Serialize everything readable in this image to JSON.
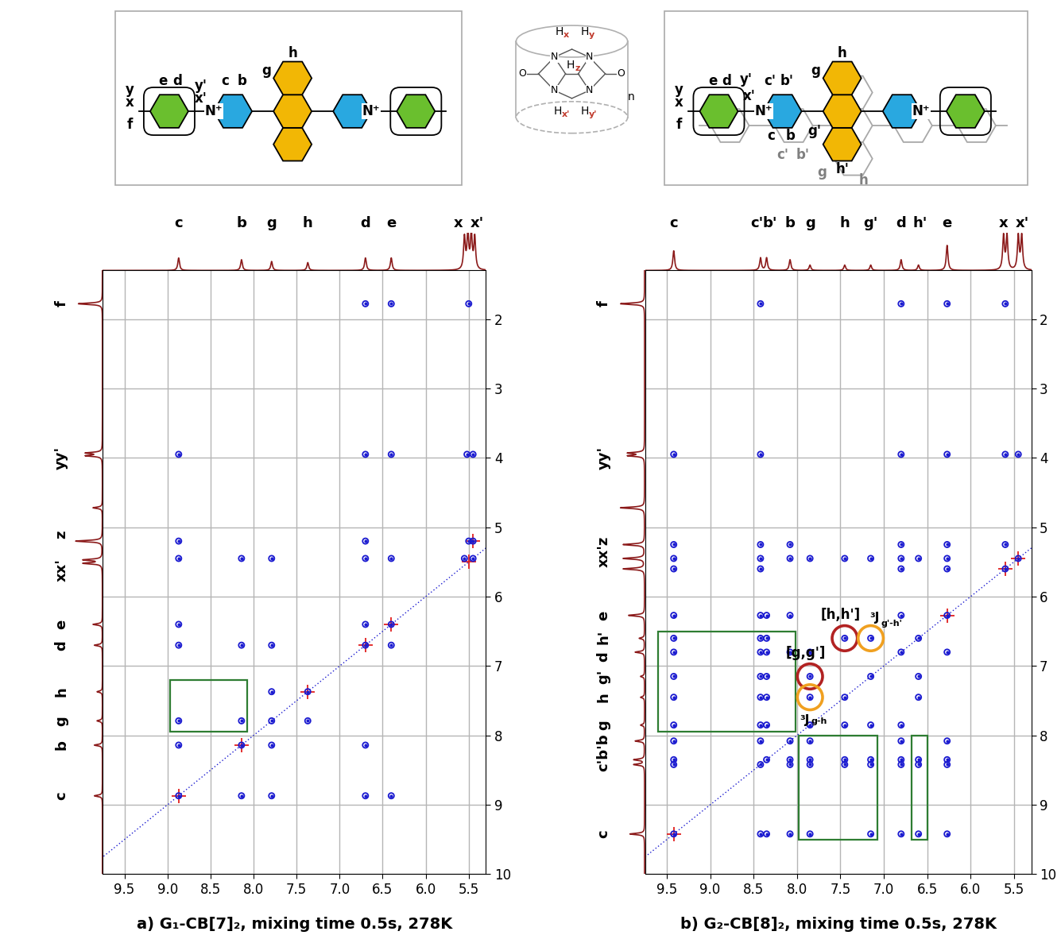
{
  "structures": {
    "G1": {
      "labels": [
        "y",
        "x",
        "f",
        "e",
        "d",
        "y'",
        "x'",
        "c",
        "b",
        "h",
        "g",
        "N⁺",
        "N⁺"
      ]
    },
    "CB": {
      "h_labels": [
        {
          "text": "H",
          "sub": "x"
        },
        {
          "text": "H",
          "sub": "y"
        },
        {
          "text": "H",
          "sub": "z"
        },
        {
          "text": "H",
          "sub": "x'"
        },
        {
          "text": "H",
          "sub": "y'"
        }
      ],
      "atoms": [
        "N",
        "N",
        "N",
        "N",
        "O",
        "O"
      ],
      "repeat": "n"
    },
    "G2": {
      "labels": [
        {
          "text": "y",
          "color": "black"
        },
        {
          "text": "x",
          "color": "black"
        },
        {
          "text": "f",
          "color": "black"
        },
        {
          "text": "e",
          "color": "black"
        },
        {
          "text": "d",
          "color": "black"
        },
        {
          "text": "y'",
          "color": "black"
        },
        {
          "text": "x'",
          "color": "black"
        },
        {
          "text": "c'",
          "color": "black"
        },
        {
          "text": "b'",
          "color": "black"
        },
        {
          "text": "N⁺",
          "color": "black"
        },
        {
          "text": "N⁺",
          "color": "black"
        },
        {
          "text": "c",
          "color": "black"
        },
        {
          "text": "b",
          "color": "black"
        },
        {
          "text": "c'",
          "color": "gray"
        },
        {
          "text": "b'",
          "color": "gray"
        },
        {
          "text": "g",
          "color": "black"
        },
        {
          "text": "h",
          "color": "black"
        },
        {
          "text": "g'",
          "color": "black"
        },
        {
          "text": "h'",
          "color": "black"
        },
        {
          "text": "g",
          "color": "gray"
        },
        {
          "text": "h",
          "color": "gray"
        }
      ]
    }
  },
  "chart_data": [
    {
      "type": "scatter",
      "title": "a) G₁-CB[7]₂, mixing time 0.5s, 278K",
      "color": "#1a1ad0",
      "xlim": [
        9.75,
        5.3
      ],
      "ylim": [
        10,
        1.3
      ],
      "xticks": [
        9.5,
        9.0,
        8.5,
        8.0,
        7.5,
        7.0,
        6.5,
        6.0,
        5.5
      ],
      "yticks": [
        2,
        3,
        4,
        5,
        6,
        7,
        8,
        9,
        10
      ],
      "grid": true,
      "cross_peaks": [
        {
          "y": 1.78,
          "x": [
            6.7,
            6.4,
            5.5
          ]
        },
        {
          "y": 3.95,
          "x": [
            8.87,
            6.7,
            6.4,
            5.52,
            5.45
          ]
        },
        {
          "y": 5.2,
          "x": [
            8.87,
            6.7,
            5.5,
            5.45
          ]
        },
        {
          "y": 5.45,
          "x": [
            8.87,
            8.14,
            7.79,
            6.7,
            6.4,
            5.55,
            5.45
          ]
        },
        {
          "y": 6.4,
          "x": [
            8.87,
            6.7,
            6.4
          ]
        },
        {
          "y": 6.7,
          "x": [
            8.87,
            8.14,
            7.79,
            6.7,
            6.4
          ]
        },
        {
          "y": 7.37,
          "x": [
            7.79,
            7.37
          ]
        },
        {
          "y": 7.79,
          "x": [
            8.87,
            8.14,
            7.79,
            7.37
          ]
        },
        {
          "y": 8.14,
          "x": [
            8.87,
            8.14,
            7.79,
            6.7
          ]
        },
        {
          "y": 8.87,
          "x": [
            8.87,
            8.14,
            7.79,
            6.7,
            6.4
          ]
        }
      ],
      "negative_peaks": [
        [
          8.87,
          8.87
        ],
        [
          8.14,
          8.14
        ],
        [
          7.37,
          7.37
        ],
        [
          6.7,
          6.7
        ],
        [
          6.4,
          6.4
        ],
        [
          5.5,
          5.5
        ],
        [
          5.45,
          5.2
        ]
      ],
      "top_trace": [
        [
          8.87,
          0.35
        ],
        [
          8.14,
          0.3
        ],
        [
          7.79,
          0.25
        ],
        [
          7.37,
          0.22
        ],
        [
          6.7,
          0.35
        ],
        [
          6.4,
          0.35
        ],
        [
          5.55,
          0.9
        ],
        [
          5.51,
          1.0
        ],
        [
          5.47,
          1.0
        ],
        [
          5.43,
          0.9
        ]
      ],
      "top_labels": [
        {
          "text": "c",
          "ppm": 8.87
        },
        {
          "text": "b",
          "ppm": 8.14
        },
        {
          "text": "g",
          "ppm": 7.79
        },
        {
          "text": "h",
          "ppm": 7.37
        },
        {
          "text": "d",
          "ppm": 6.7
        },
        {
          "text": "e",
          "ppm": 6.4
        },
        {
          "text": "x",
          "ppm": 5.62
        },
        {
          "text": "x'",
          "ppm": 5.4
        }
      ],
      "side_trace": [
        [
          1.78,
          0.9
        ],
        [
          3.93,
          0.6
        ],
        [
          3.97,
          0.6
        ],
        [
          4.72,
          0.35
        ],
        [
          5.2,
          1.0
        ],
        [
          5.47,
          0.7
        ],
        [
          5.52,
          0.7
        ],
        [
          6.4,
          0.35
        ],
        [
          6.7,
          0.3
        ],
        [
          7.37,
          0.2
        ],
        [
          7.79,
          0.2
        ],
        [
          8.14,
          0.3
        ],
        [
          8.87,
          0.3
        ]
      ],
      "side_labels": [
        {
          "text": "f",
          "ppm": 1.78
        },
        {
          "text": "yy'",
          "ppm": 4.0
        },
        {
          "text": "z",
          "ppm": 5.1
        },
        {
          "text": "xx'",
          "ppm": 5.62
        },
        {
          "text": "e",
          "ppm": 6.4
        },
        {
          "text": "d",
          "ppm": 6.7
        },
        {
          "text": "h",
          "ppm": 7.37
        },
        {
          "text": "g",
          "ppm": 7.79
        },
        {
          "text": "b",
          "ppm": 8.14
        },
        {
          "text": "c",
          "ppm": 8.87
        }
      ],
      "highlight_boxes": [
        {
          "x": [
            8.97,
            8.07
          ],
          "y": [
            7.2,
            7.95
          ]
        }
      ],
      "circled": []
    },
    {
      "type": "scatter",
      "title": "b) G₂-CB[8]₂, mixing time 0.5s, 278K",
      "color": "#1a1ad0",
      "xlim": [
        9.75,
        5.3
      ],
      "ylim": [
        10,
        1.3
      ],
      "xticks": [
        9.5,
        9.0,
        8.5,
        8.0,
        7.5,
        7.0,
        6.5,
        6.0,
        5.5
      ],
      "yticks": [
        2,
        3,
        4,
        5,
        6,
        7,
        8,
        9,
        10
      ],
      "grid": true,
      "cross_peaks": [
        {
          "y": 1.78,
          "x": [
            8.42,
            6.8,
            6.27,
            5.6
          ]
        },
        {
          "y": 3.95,
          "x": [
            9.42,
            8.42,
            6.8,
            6.27,
            5.6,
            5.45
          ]
        },
        {
          "y": 5.25,
          "x": [
            9.42,
            8.42,
            8.08,
            6.8,
            6.27,
            5.6
          ]
        },
        {
          "y": 5.45,
          "x": [
            9.42,
            8.42,
            8.08,
            7.85,
            7.45,
            7.15,
            6.8,
            6.6,
            6.27,
            5.45
          ]
        },
        {
          "y": 5.6,
          "x": [
            9.42,
            8.42,
            6.8,
            6.27,
            5.6
          ]
        },
        {
          "y": 6.27,
          "x": [
            9.42,
            8.42,
            8.35,
            8.08,
            6.8,
            6.27
          ]
        },
        {
          "y": 6.6,
          "x": [
            9.42,
            8.42,
            8.35,
            7.45,
            7.15,
            6.6
          ]
        },
        {
          "y": 6.8,
          "x": [
            9.42,
            8.42,
            8.35,
            8.08,
            7.85,
            6.8,
            6.27
          ]
        },
        {
          "y": 7.15,
          "x": [
            9.42,
            8.42,
            8.35,
            7.85,
            7.15,
            6.6
          ]
        },
        {
          "y": 7.45,
          "x": [
            9.42,
            8.42,
            8.35,
            7.85,
            7.45,
            6.6
          ]
        },
        {
          "y": 7.85,
          "x": [
            9.42,
            8.42,
            8.35,
            7.85,
            7.45,
            7.15,
            6.8
          ]
        },
        {
          "y": 8.08,
          "x": [
            9.42,
            8.42,
            8.08,
            7.85,
            6.8,
            6.27
          ]
        },
        {
          "y": 8.35,
          "x": [
            9.42,
            8.35,
            8.08,
            7.85,
            7.45,
            7.15,
            6.8,
            6.6,
            6.27
          ]
        },
        {
          "y": 8.42,
          "x": [
            9.42,
            8.42,
            8.08,
            7.85,
            7.45,
            7.15,
            6.8,
            6.6,
            6.27
          ]
        },
        {
          "y": 9.42,
          "x": [
            9.42,
            8.42,
            8.35,
            8.08,
            7.85,
            7.15,
            6.8,
            6.6,
            6.27
          ]
        }
      ],
      "negative_peaks": [
        [
          9.42,
          9.42
        ],
        [
          6.27,
          6.27
        ],
        [
          5.6,
          5.6
        ],
        [
          5.45,
          5.45
        ]
      ],
      "top_trace": [
        [
          9.42,
          0.55
        ],
        [
          8.42,
          0.35
        ],
        [
          8.35,
          0.35
        ],
        [
          8.08,
          0.3
        ],
        [
          7.85,
          0.15
        ],
        [
          7.45,
          0.15
        ],
        [
          7.15,
          0.15
        ],
        [
          6.8,
          0.3
        ],
        [
          6.6,
          0.15
        ],
        [
          6.27,
          0.7
        ],
        [
          5.62,
          0.95
        ],
        [
          5.58,
          0.95
        ],
        [
          5.45,
          0.95
        ],
        [
          5.41,
          0.95
        ]
      ],
      "top_labels": [
        {
          "text": "c",
          "ppm": 9.42
        },
        {
          "text": "c'",
          "ppm": 8.46
        },
        {
          "text": "b'",
          "ppm": 8.31
        },
        {
          "text": "b",
          "ppm": 8.08
        },
        {
          "text": "g",
          "ppm": 7.85
        },
        {
          "text": "h",
          "ppm": 7.45
        },
        {
          "text": "g'",
          "ppm": 7.15
        },
        {
          "text": "d",
          "ppm": 6.8
        },
        {
          "text": "h'",
          "ppm": 6.58
        },
        {
          "text": "e",
          "ppm": 6.27
        },
        {
          "text": "x",
          "ppm": 5.62
        },
        {
          "text": "x'",
          "ppm": 5.4
        }
      ],
      "side_trace": [
        [
          1.78,
          0.9
        ],
        [
          3.93,
          0.6
        ],
        [
          3.97,
          0.6
        ],
        [
          4.72,
          0.9
        ],
        [
          5.25,
          0.8
        ],
        [
          5.45,
          0.8
        ],
        [
          5.6,
          0.8
        ],
        [
          6.27,
          0.6
        ],
        [
          6.6,
          0.2
        ],
        [
          6.8,
          0.35
        ],
        [
          7.15,
          0.15
        ],
        [
          7.45,
          0.15
        ],
        [
          7.85,
          0.15
        ],
        [
          8.08,
          0.35
        ],
        [
          8.35,
          0.4
        ],
        [
          8.42,
          0.4
        ],
        [
          9.42,
          0.55
        ]
      ],
      "side_labels": [
        {
          "text": "f",
          "ppm": 1.78
        },
        {
          "text": "yy'",
          "ppm": 4.0
        },
        {
          "text": "xx'z",
          "ppm": 5.35
        },
        {
          "text": "e",
          "ppm": 6.27
        },
        {
          "text": "h'",
          "ppm": 6.58
        },
        {
          "text": "d",
          "ppm": 6.86
        },
        {
          "text": "g'",
          "ppm": 7.15
        },
        {
          "text": "h",
          "ppm": 7.45
        },
        {
          "text": "g",
          "ppm": 7.85
        },
        {
          "text": "c'b'b",
          "ppm": 8.25
        },
        {
          "text": "c",
          "ppm": 9.42
        }
      ],
      "highlight_boxes": [
        {
          "x": [
            9.6,
            8.02
          ],
          "y": [
            6.5,
            7.95
          ]
        },
        {
          "x": [
            7.98,
            7.07
          ],
          "y": [
            8.0,
            9.5
          ]
        },
        {
          "x": [
            6.68,
            6.5
          ],
          "y": [
            8.0,
            9.5
          ]
        }
      ],
      "circled": [
        {
          "x": 7.85,
          "y": 7.15,
          "color": "#b22222",
          "text": "[g,g']"
        },
        {
          "x": 7.45,
          "y": 6.6,
          "color": "#b22222",
          "text": "[h,h']"
        },
        {
          "x": 7.85,
          "y": 7.45,
          "color": "#f0a020",
          "text": "³J",
          "sub": "g-h"
        },
        {
          "x": 7.15,
          "y": 6.6,
          "color": "#f0a020",
          "text": "³J",
          "sub": "g'-h'"
        }
      ]
    }
  ]
}
